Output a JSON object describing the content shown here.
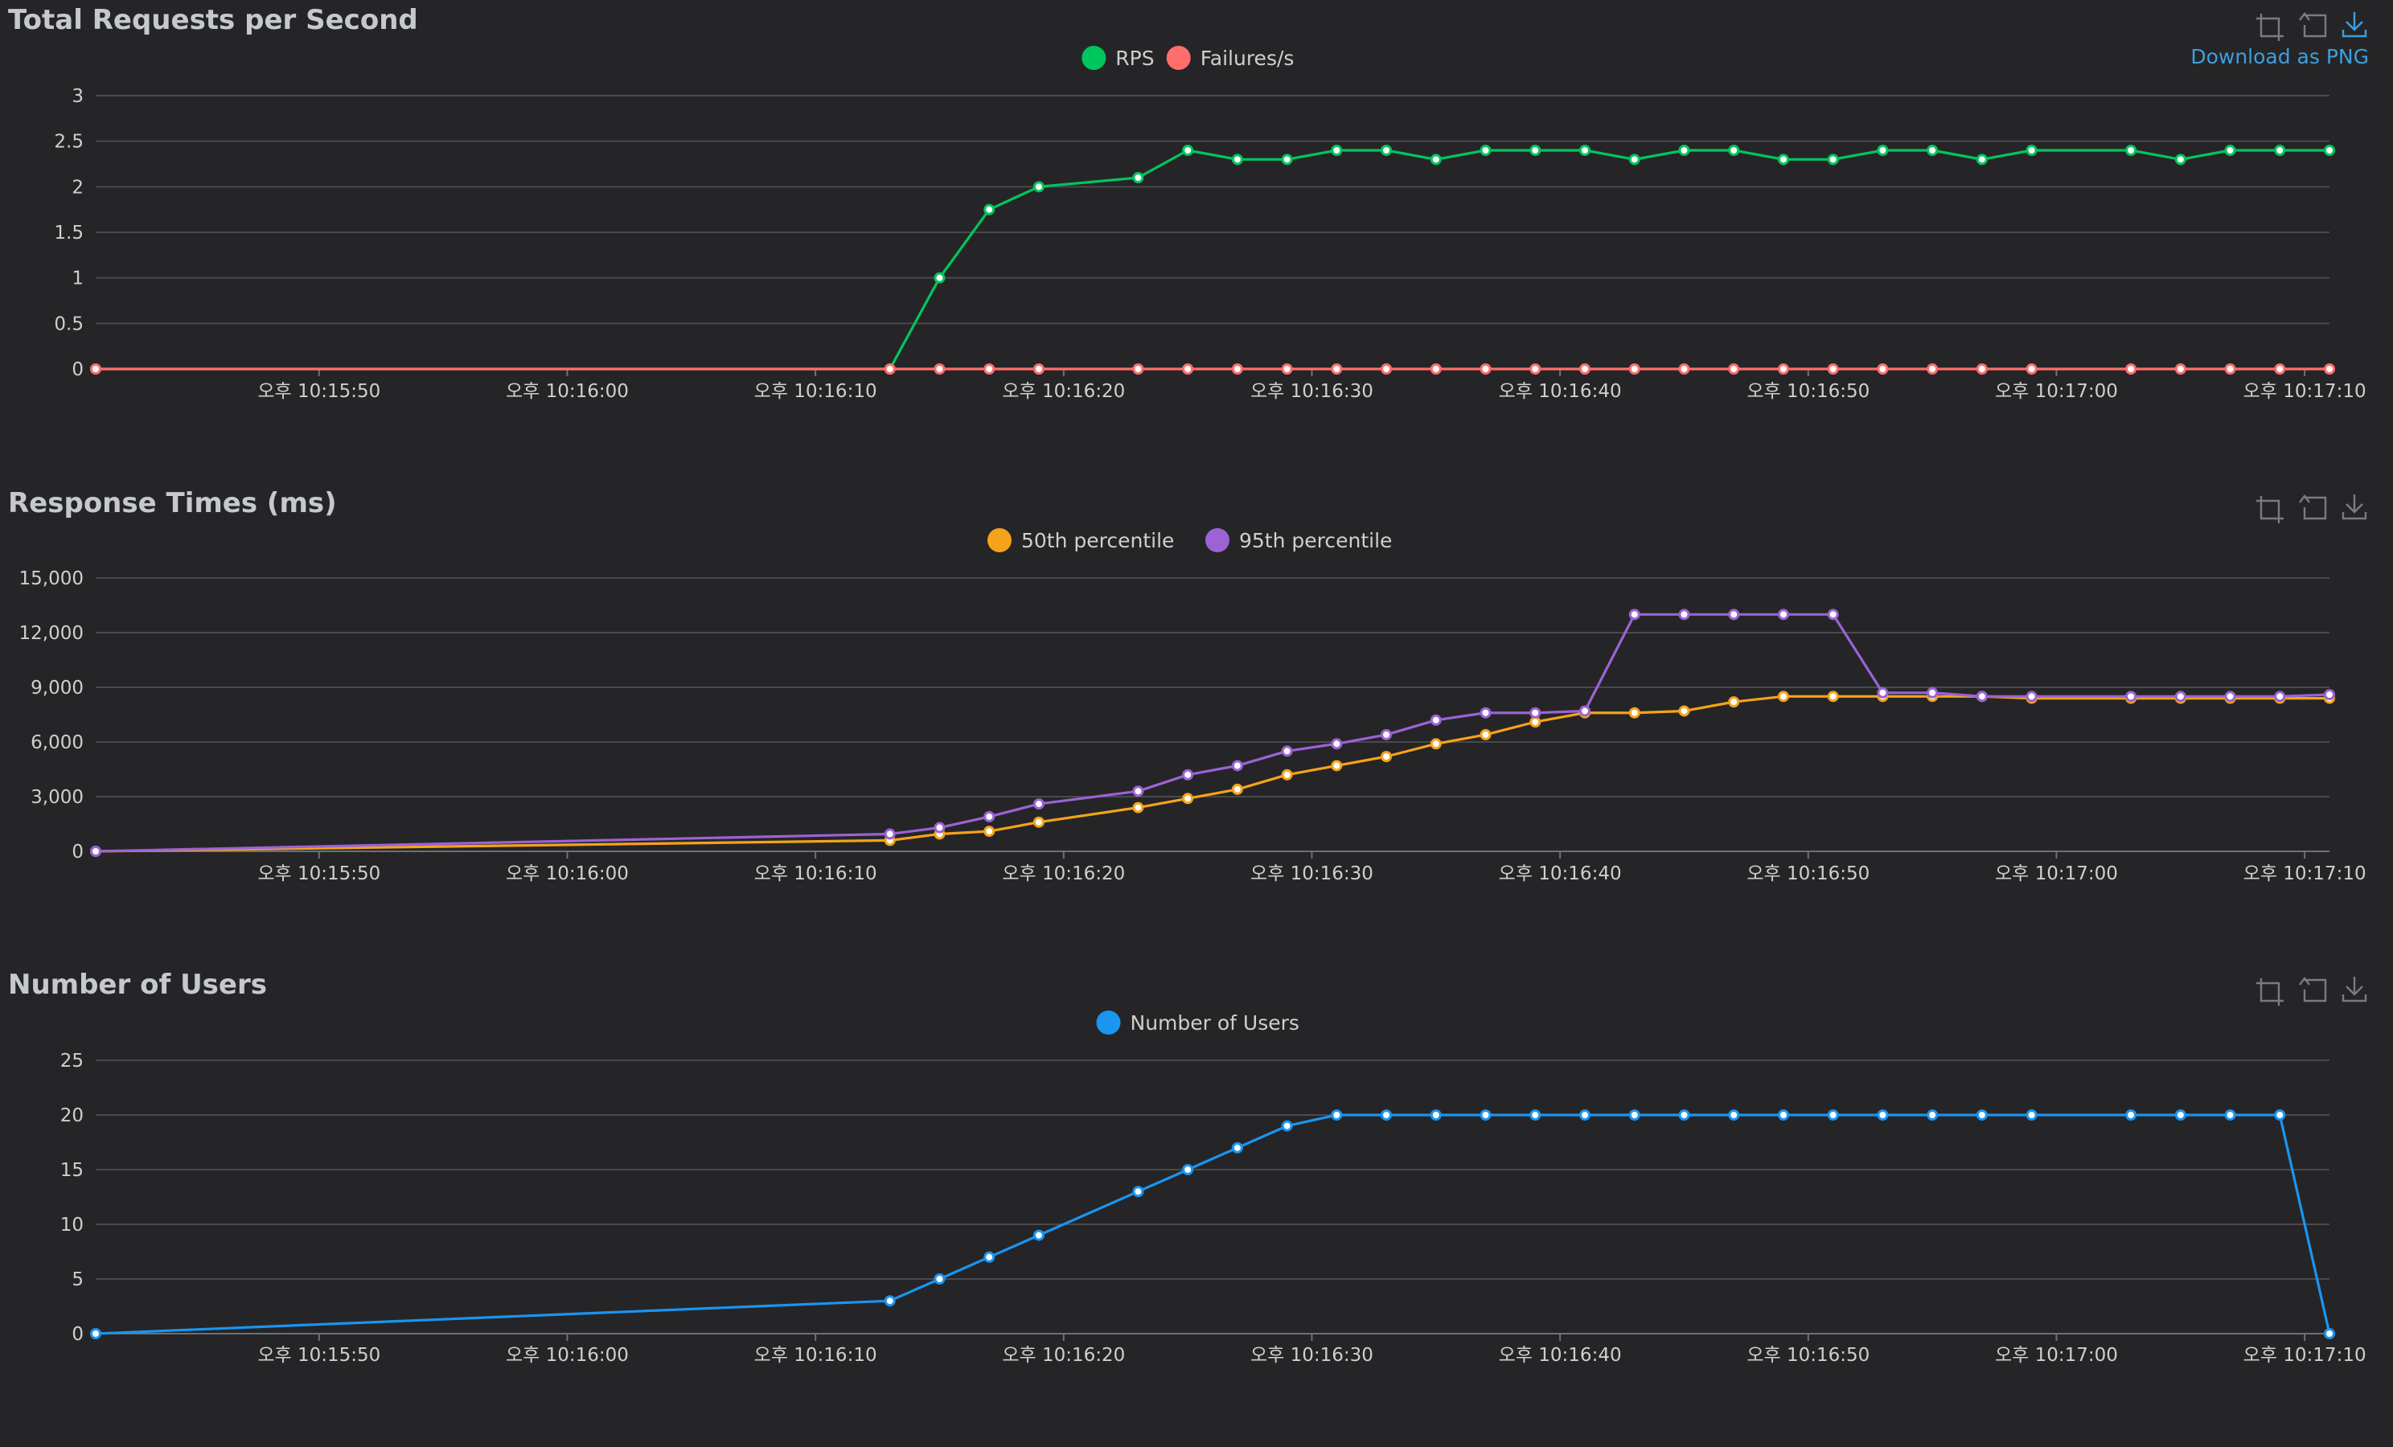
{
  "toolbox": {
    "download_label": "Download as PNG",
    "icons": [
      "zoom-icon",
      "restore-icon",
      "download-icon"
    ]
  },
  "x_axis_ticks": [
    "오후 10:15:50",
    "오후 10:16:00",
    "오후 10:16:10",
    "오후 10:16:20",
    "오후 10:16:30",
    "오후 10:16:40",
    "오후 10:16:50",
    "오후 10:17:00",
    "오후 10:17:10"
  ],
  "chart_data": [
    {
      "type": "line",
      "title": "Total Requests per Second",
      "x_start": "오후 10:15:41",
      "x_end": "오후 10:17:11",
      "ylim": [
        0,
        3
      ],
      "y_ticks": [
        "0",
        "0.5",
        "1",
        "1.5",
        "2",
        "2.5",
        "3"
      ],
      "grid": true,
      "legend_placement": "top-center",
      "series": [
        {
          "name": "RPS",
          "color": "#00c65e",
          "points": [
            [
              "10:15:41",
              0
            ],
            [
              "10:16:13",
              0
            ],
            [
              "10:16:15",
              1
            ],
            [
              "10:16:17",
              1.75
            ],
            [
              "10:16:19",
              2
            ],
            [
              "10:16:23",
              2.1
            ],
            [
              "10:16:25",
              2.4
            ],
            [
              "10:16:27",
              2.3
            ],
            [
              "10:16:29",
              2.3
            ],
            [
              "10:16:31",
              2.4
            ],
            [
              "10:16:33",
              2.4
            ],
            [
              "10:16:35",
              2.3
            ],
            [
              "10:16:37",
              2.4
            ],
            [
              "10:16:39",
              2.4
            ],
            [
              "10:16:41",
              2.4
            ],
            [
              "10:16:43",
              2.3
            ],
            [
              "10:16:45",
              2.4
            ],
            [
              "10:16:47",
              2.4
            ],
            [
              "10:16:49",
              2.3
            ],
            [
              "10:16:51",
              2.3
            ],
            [
              "10:16:53",
              2.4
            ],
            [
              "10:16:55",
              2.4
            ],
            [
              "10:16:57",
              2.3
            ],
            [
              "10:16:59",
              2.4
            ],
            [
              "10:17:03",
              2.4
            ],
            [
              "10:17:05",
              2.3
            ],
            [
              "10:17:07",
              2.4
            ],
            [
              "10:17:09",
              2.4
            ],
            [
              "10:17:11",
              2.4
            ]
          ]
        },
        {
          "name": "Failures/s",
          "color": "#ff6d6d",
          "points": [
            [
              "10:15:41",
              0
            ],
            [
              "10:16:13",
              0
            ],
            [
              "10:16:15",
              0
            ],
            [
              "10:16:17",
              0
            ],
            [
              "10:16:19",
              0
            ],
            [
              "10:16:23",
              0
            ],
            [
              "10:16:25",
              0
            ],
            [
              "10:16:27",
              0
            ],
            [
              "10:16:29",
              0
            ],
            [
              "10:16:31",
              0
            ],
            [
              "10:16:33",
              0
            ],
            [
              "10:16:35",
              0
            ],
            [
              "10:16:37",
              0
            ],
            [
              "10:16:39",
              0
            ],
            [
              "10:16:41",
              0
            ],
            [
              "10:16:43",
              0
            ],
            [
              "10:16:45",
              0
            ],
            [
              "10:16:47",
              0
            ],
            [
              "10:16:49",
              0
            ],
            [
              "10:16:51",
              0
            ],
            [
              "10:16:53",
              0
            ],
            [
              "10:16:55",
              0
            ],
            [
              "10:16:57",
              0
            ],
            [
              "10:16:59",
              0
            ],
            [
              "10:17:03",
              0
            ],
            [
              "10:17:05",
              0
            ],
            [
              "10:17:07",
              0
            ],
            [
              "10:17:09",
              0
            ],
            [
              "10:17:11",
              0
            ]
          ]
        }
      ]
    },
    {
      "type": "line",
      "title": "Response Times (ms)",
      "x_start": "오후 10:15:41",
      "x_end": "오후 10:17:11",
      "ylim": [
        0,
        15000
      ],
      "y_ticks": [
        "0",
        "3,000",
        "6,000",
        "9,000",
        "12,000",
        "15,000"
      ],
      "grid": true,
      "legend_placement": "top-center",
      "series": [
        {
          "name": "50th percentile",
          "color": "#f5a31a",
          "points": [
            [
              "10:15:41",
              0
            ],
            [
              "10:16:13",
              600
            ],
            [
              "10:16:15",
              950
            ],
            [
              "10:16:17",
              1100
            ],
            [
              "10:16:19",
              1600
            ],
            [
              "10:16:23",
              2400
            ],
            [
              "10:16:25",
              2900
            ],
            [
              "10:16:27",
              3400
            ],
            [
              "10:16:29",
              4200
            ],
            [
              "10:16:31",
              4700
            ],
            [
              "10:16:33",
              5200
            ],
            [
              "10:16:35",
              5900
            ],
            [
              "10:16:37",
              6400
            ],
            [
              "10:16:39",
              7100
            ],
            [
              "10:16:41",
              7600
            ],
            [
              "10:16:43",
              7600
            ],
            [
              "10:16:45",
              7700
            ],
            [
              "10:16:47",
              8200
            ],
            [
              "10:16:49",
              8500
            ],
            [
              "10:16:51",
              8500
            ],
            [
              "10:16:53",
              8500
            ],
            [
              "10:16:55",
              8500
            ],
            [
              "10:16:57",
              8500
            ],
            [
              "10:16:59",
              8400
            ],
            [
              "10:17:03",
              8400
            ],
            [
              "10:17:05",
              8400
            ],
            [
              "10:17:07",
              8400
            ],
            [
              "10:17:09",
              8400
            ],
            [
              "10:17:11",
              8400
            ]
          ]
        },
        {
          "name": "95th percentile",
          "color": "#9b63d6",
          "points": [
            [
              "10:15:41",
              0
            ],
            [
              "10:16:13",
              950
            ],
            [
              "10:16:15",
              1300
            ],
            [
              "10:16:17",
              1900
            ],
            [
              "10:16:19",
              2600
            ],
            [
              "10:16:23",
              3300
            ],
            [
              "10:16:25",
              4200
            ],
            [
              "10:16:27",
              4700
            ],
            [
              "10:16:29",
              5500
            ],
            [
              "10:16:31",
              5900
            ],
            [
              "10:16:33",
              6400
            ],
            [
              "10:16:35",
              7200
            ],
            [
              "10:16:37",
              7600
            ],
            [
              "10:16:39",
              7600
            ],
            [
              "10:16:41",
              7700
            ],
            [
              "10:16:43",
              13000
            ],
            [
              "10:16:45",
              13000
            ],
            [
              "10:16:47",
              13000
            ],
            [
              "10:16:49",
              13000
            ],
            [
              "10:16:51",
              13000
            ],
            [
              "10:16:53",
              8700
            ],
            [
              "10:16:55",
              8700
            ],
            [
              "10:16:57",
              8500
            ],
            [
              "10:16:59",
              8500
            ],
            [
              "10:17:03",
              8500
            ],
            [
              "10:17:05",
              8500
            ],
            [
              "10:17:07",
              8500
            ],
            [
              "10:17:09",
              8500
            ],
            [
              "10:17:11",
              8600
            ]
          ]
        }
      ]
    },
    {
      "type": "line",
      "title": "Number of Users",
      "x_start": "오후 10:15:41",
      "x_end": "오후 10:17:11",
      "ylim": [
        0,
        25
      ],
      "y_ticks": [
        "0",
        "5",
        "10",
        "15",
        "20",
        "25"
      ],
      "grid": true,
      "legend_placement": "top-center",
      "series": [
        {
          "name": "Number of Users",
          "color": "#1a95f0",
          "points": [
            [
              "10:15:41",
              0
            ],
            [
              "10:16:13",
              3
            ],
            [
              "10:16:15",
              5
            ],
            [
              "10:16:17",
              7
            ],
            [
              "10:16:19",
              9
            ],
            [
              "10:16:23",
              13
            ],
            [
              "10:16:25",
              15
            ],
            [
              "10:16:27",
              17
            ],
            [
              "10:16:29",
              19
            ],
            [
              "10:16:31",
              20
            ],
            [
              "10:16:33",
              20
            ],
            [
              "10:16:35",
              20
            ],
            [
              "10:16:37",
              20
            ],
            [
              "10:16:39",
              20
            ],
            [
              "10:16:41",
              20
            ],
            [
              "10:16:43",
              20
            ],
            [
              "10:16:45",
              20
            ],
            [
              "10:16:47",
              20
            ],
            [
              "10:16:49",
              20
            ],
            [
              "10:16:51",
              20
            ],
            [
              "10:16:53",
              20
            ],
            [
              "10:16:55",
              20
            ],
            [
              "10:16:57",
              20
            ],
            [
              "10:16:59",
              20
            ],
            [
              "10:17:03",
              20
            ],
            [
              "10:17:05",
              20
            ],
            [
              "10:17:07",
              20
            ],
            [
              "10:17:09",
              20
            ],
            [
              "10:17:11",
              0
            ]
          ]
        }
      ]
    }
  ]
}
